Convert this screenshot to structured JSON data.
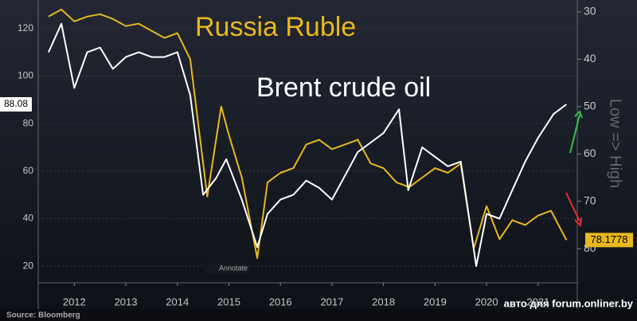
{
  "chart_data": {
    "type": "line",
    "annotations": {
      "y2_label": "Low => High",
      "source": "Source: Bloomberg",
      "button": "Annotate",
      "watermark": "авто для forum.onliner.by"
    },
    "series": [
      {
        "name": "Brent crude oil",
        "color": "#ffffff",
        "axis": "y",
        "x": [
          2012.0,
          2012.25,
          2012.5,
          2012.75,
          2013.0,
          2013.25,
          2013.5,
          2013.75,
          2014.0,
          2014.25,
          2014.5,
          2014.75,
          2015.0,
          2015.25,
          2015.45,
          2015.75,
          2016.05,
          2016.25,
          2016.5,
          2016.75,
          2017.0,
          2017.25,
          2017.5,
          2017.75,
          2018.0,
          2018.25,
          2018.5,
          2018.8,
          2018.98,
          2019.25,
          2019.5,
          2019.75,
          2020.0,
          2020.3,
          2020.5,
          2020.75,
          2021.0,
          2021.25,
          2021.5,
          2021.8,
          2022.05
        ],
        "values": [
          110,
          122,
          95,
          110,
          112,
          103,
          108,
          110,
          108,
          108,
          110,
          92,
          50,
          57,
          65,
          48,
          28,
          42,
          48,
          50,
          56,
          53,
          48,
          58,
          68,
          72,
          76,
          86,
          52,
          70,
          66,
          62,
          64,
          20,
          42,
          40,
          52,
          64,
          74,
          84,
          88.08
        ]
      },
      {
        "name": "Russia Ruble",
        "color": "#e8b81c",
        "axis": "y2",
        "x": [
          2012.0,
          2012.25,
          2012.5,
          2012.75,
          2013.0,
          2013.25,
          2013.5,
          2013.75,
          2014.0,
          2014.25,
          2014.5,
          2014.75,
          2015.08,
          2015.35,
          2015.5,
          2015.75,
          2016.05,
          2016.25,
          2016.5,
          2016.75,
          2017.0,
          2017.25,
          2017.5,
          2017.75,
          2018.0,
          2018.25,
          2018.5,
          2018.75,
          2019.0,
          2019.25,
          2019.5,
          2019.75,
          2020.0,
          2020.25,
          2020.5,
          2020.75,
          2021.0,
          2021.25,
          2021.5,
          2021.75,
          2022.05
        ],
        "values": [
          31,
          29.5,
          32,
          31,
          30.5,
          31.5,
          33,
          32.5,
          34,
          35.5,
          34.5,
          40,
          69,
          50,
          56,
          65,
          82,
          66,
          64,
          63,
          58,
          57,
          59,
          58,
          57,
          62,
          63,
          66,
          67,
          65,
          63,
          64,
          62,
          80,
          71,
          78,
          74,
          75,
          73,
          72,
          78.1778
        ]
      }
    ],
    "xlim": [
      2011.8,
      2022.26
    ],
    "xticks": [
      {
        "value": 2012.5,
        "label": "2012"
      },
      {
        "value": 2013.5,
        "label": "2013"
      },
      {
        "value": 2014.5,
        "label": "2014"
      },
      {
        "value": 2015.5,
        "label": "2015"
      },
      {
        "value": 2016.5,
        "label": "2016"
      },
      {
        "value": 2017.5,
        "label": "2017"
      },
      {
        "value": 2018.5,
        "label": "2018"
      },
      {
        "value": 2019.5,
        "label": "2019"
      },
      {
        "value": 2020.5,
        "label": "2020"
      },
      {
        "value": 2021.5,
        "label": "2021"
      }
    ],
    "ylim": [
      13,
      132
    ],
    "yticks": [
      20,
      40,
      60,
      80,
      100,
      120
    ],
    "y2lim": [
      87.2,
      27.5
    ],
    "y2ticks": [
      30,
      40,
      50,
      60,
      70,
      80
    ],
    "grid": true
  }
}
